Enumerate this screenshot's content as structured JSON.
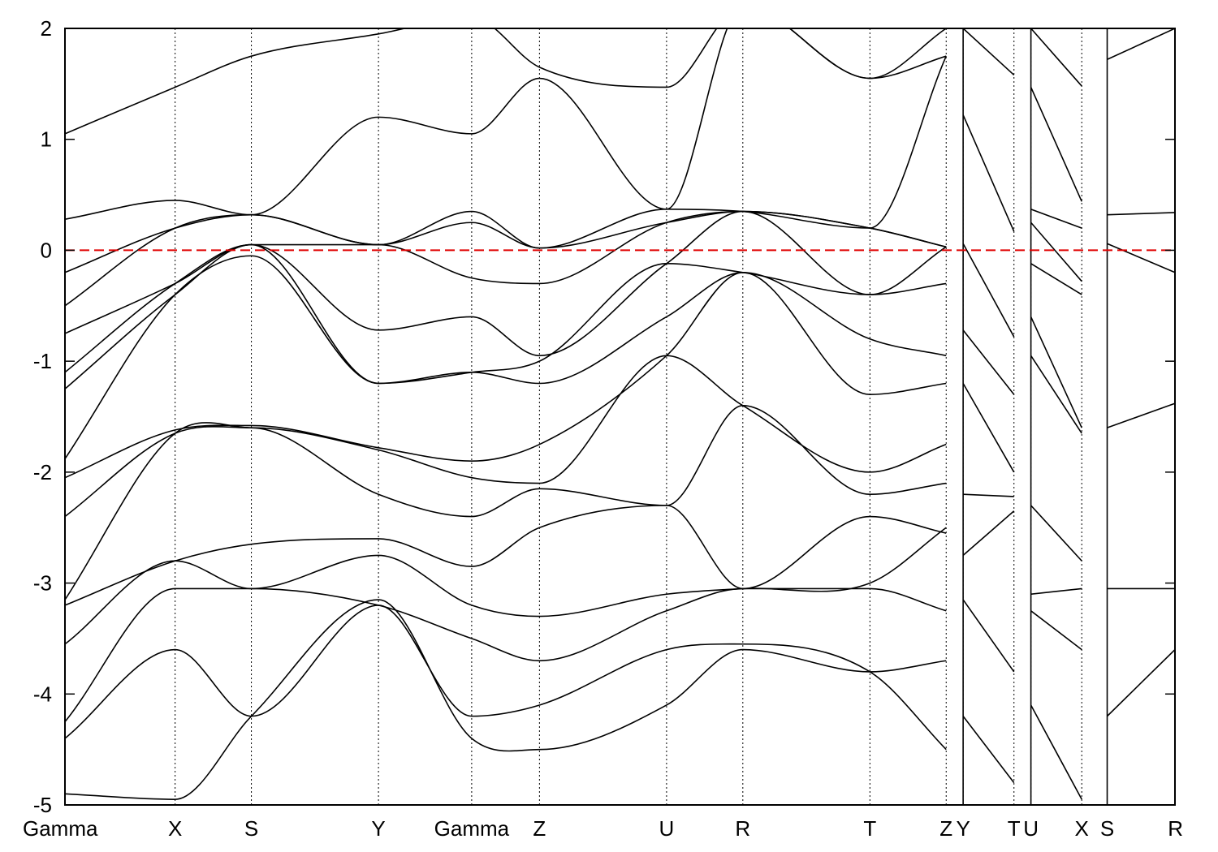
{
  "chart_data": {
    "type": "line",
    "title": "",
    "xlabel": "",
    "ylabel": "",
    "ylim": [
      -5,
      2
    ],
    "xlim": [
      0,
      13.1
    ],
    "y_ticks": [
      {
        "value": -5,
        "label": "-5"
      },
      {
        "value": -4,
        "label": "-4"
      },
      {
        "value": -3,
        "label": "-3"
      },
      {
        "value": -2,
        "label": "-2"
      },
      {
        "value": -1,
        "label": "-1"
      },
      {
        "value": 0,
        "label": "0"
      },
      {
        "value": 1,
        "label": "1"
      },
      {
        "value": 2,
        "label": "2"
      }
    ],
    "k_points": [
      {
        "label": "Gamma",
        "x": 0.0
      },
      {
        "label": "X",
        "x": 1.3
      },
      {
        "label": "S",
        "x": 2.2
      },
      {
        "label": "Y",
        "x": 3.7
      },
      {
        "label": "Gamma",
        "x": 4.8
      },
      {
        "label": "Z",
        "x": 5.6
      },
      {
        "label": "U",
        "x": 7.1
      },
      {
        "label": "R",
        "x": 8.0
      },
      {
        "label": "T",
        "x": 9.5
      },
      {
        "label": "Z",
        "x": 10.4
      },
      {
        "label": "Y",
        "x": 10.6
      },
      {
        "label": "T",
        "x": 11.2
      },
      {
        "label": "U",
        "x": 11.4
      },
      {
        "label": "X",
        "x": 12.0
      },
      {
        "label": "S",
        "x": 12.3
      },
      {
        "label": "R",
        "x": 13.1
      }
    ],
    "fermi_level": {
      "value": 0,
      "color": "#e00000",
      "style": "dashed"
    },
    "grid": "vertical dotted lines at k-points",
    "line_color": "#000000",
    "segments": [
      {
        "x": [
          0.0,
          1.3,
          2.2,
          3.7,
          4.8,
          5.6,
          7.1,
          8.0,
          9.5,
          10.4
        ],
        "bands": [
          [
            -4.9,
            -4.95,
            -4.2,
            -3.15,
            -4.4,
            -4.5,
            -4.1,
            -3.6,
            -3.8,
            -3.7
          ],
          [
            -4.4,
            -3.6,
            -4.2,
            -3.2,
            -4.2,
            -4.1,
            -3.6,
            -3.55,
            -3.8,
            -4.5
          ],
          [
            -4.25,
            -3.05,
            -3.05,
            -3.2,
            -3.5,
            -3.7,
            -3.25,
            -3.05,
            -3.05,
            -3.25
          ],
          [
            -3.55,
            -2.8,
            -3.05,
            -2.75,
            -3.2,
            -3.3,
            -3.1,
            -3.05,
            -3.0,
            -2.5
          ],
          [
            -3.2,
            -2.8,
            -2.65,
            -2.6,
            -2.85,
            -2.5,
            -2.3,
            -3.05,
            -2.4,
            -2.55
          ],
          [
            -3.15,
            -1.65,
            -1.6,
            -2.2,
            -2.4,
            -2.15,
            -2.3,
            -1.4,
            -2.2,
            -2.1
          ],
          [
            -2.4,
            -1.65,
            -1.6,
            -1.8,
            -2.05,
            -2.1,
            -0.95,
            -1.4,
            -2.0,
            -1.75
          ],
          [
            -2.05,
            -1.62,
            -1.58,
            -1.78,
            -1.9,
            -1.75,
            -0.95,
            -0.2,
            -1.3,
            -1.2
          ],
          [
            -1.88,
            -0.4,
            -0.05,
            -1.2,
            -1.1,
            -1.2,
            -0.6,
            -0.2,
            -0.8,
            -0.95
          ],
          [
            -1.25,
            -0.4,
            0.05,
            -1.2,
            -1.1,
            -1.0,
            -0.12,
            -0.2,
            -0.4,
            -0.3
          ],
          [
            -1.1,
            -0.3,
            0.05,
            -0.72,
            -0.6,
            -0.95,
            -0.12,
            0.35,
            -0.4,
            0.03
          ],
          [
            -0.75,
            -0.3,
            0.05,
            0.05,
            -0.25,
            -0.3,
            0.25,
            0.35,
            0.2,
            0.03
          ],
          [
            -0.5,
            0.2,
            0.32,
            0.05,
            0.25,
            0.02,
            0.25,
            0.35,
            0.2,
            0.03
          ],
          [
            -0.2,
            0.2,
            0.32,
            0.05,
            0.35,
            0.02,
            0.37,
            0.35,
            0.2,
            1.75
          ],
          [
            0.28,
            0.45,
            0.32,
            1.2,
            1.05,
            1.55,
            0.37,
            2.2,
            1.55,
            1.75
          ],
          [
            1.05,
            1.47,
            1.75,
            1.95,
            2.1,
            1.65,
            1.47,
            2.2,
            1.55,
            2.0
          ]
        ]
      },
      {
        "x": [
          10.6,
          11.2
        ],
        "bands": [
          [
            -4.2,
            -4.8
          ],
          [
            -3.15,
            -3.8
          ],
          [
            -2.75,
            -2.35
          ],
          [
            -2.2,
            -2.22
          ],
          [
            -1.2,
            -2.0
          ],
          [
            -0.72,
            -1.3
          ],
          [
            0.06,
            -0.78
          ],
          [
            1.22,
            0.17
          ],
          [
            2.0,
            1.58
          ]
        ]
      },
      {
        "x": [
          11.4,
          12.0
        ],
        "bands": [
          [
            -4.1,
            -4.95
          ],
          [
            -3.25,
            -3.6
          ],
          [
            -3.1,
            -3.05
          ],
          [
            -2.3,
            -2.8
          ],
          [
            -0.95,
            -1.65
          ],
          [
            -0.6,
            -1.6
          ],
          [
            -0.12,
            -0.4
          ],
          [
            0.25,
            -0.28
          ],
          [
            0.37,
            0.2
          ],
          [
            1.47,
            0.44
          ],
          [
            2.0,
            1.48
          ]
        ]
      },
      {
        "x": [
          12.3,
          13.1
        ],
        "bands": [
          [
            -4.2,
            -3.6
          ],
          [
            -3.05,
            -3.05
          ],
          [
            -1.6,
            -1.38
          ],
          [
            0.06,
            -0.2
          ],
          [
            0.32,
            0.34
          ],
          [
            1.72,
            2.0
          ]
        ]
      }
    ]
  }
}
